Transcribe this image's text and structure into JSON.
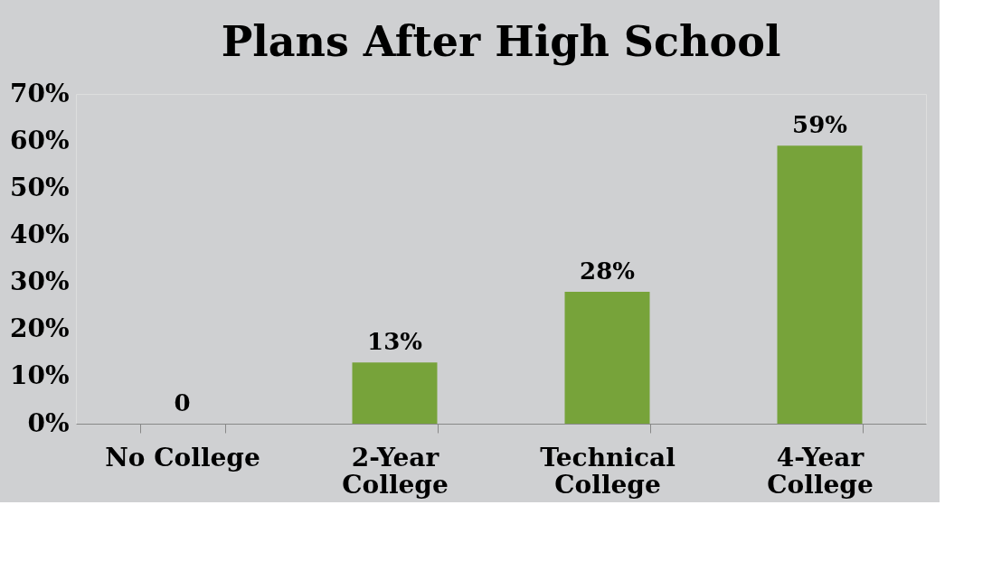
{
  "chart_data": {
    "type": "bar",
    "title": "Plans After High School",
    "categories": [
      "No College",
      "2-Year College",
      "Technical College",
      "4-Year College"
    ],
    "values": [
      0,
      13,
      28,
      59
    ],
    "value_labels": [
      "0",
      "13%",
      "28%",
      "59%"
    ],
    "color": "#77a33a",
    "ylim": [
      0,
      70
    ],
    "yticks": [
      {
        "value": 0,
        "label": "0%"
      },
      {
        "value": 10,
        "label": "10%"
      },
      {
        "value": 20,
        "label": "20%"
      },
      {
        "value": 30,
        "label": "30%"
      },
      {
        "value": 40,
        "label": "40%"
      },
      {
        "value": 50,
        "label": "50%"
      },
      {
        "value": 60,
        "label": "60%"
      },
      {
        "value": 70,
        "label": "70%"
      }
    ],
    "grid": false
  }
}
